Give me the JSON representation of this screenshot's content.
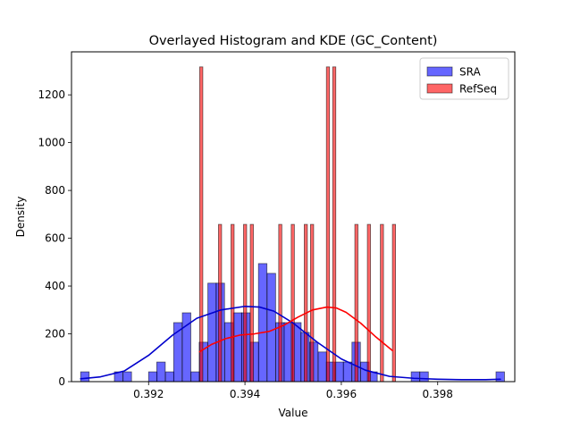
{
  "chart_data": {
    "type": "bar",
    "title": "Overlayed Histogram and KDE (GC_Content)",
    "xlabel": "Value",
    "ylabel": "Density",
    "xlim": [
      0.3904,
      0.3996
    ],
    "ylim": [
      0,
      1380
    ],
    "xticks": [
      0.392,
      0.394,
      0.396,
      0.398
    ],
    "xtick_labels": [
      "0.392",
      "0.394",
      "0.396",
      "0.398"
    ],
    "yticks": [
      0,
      200,
      400,
      600,
      800,
      1000,
      1200
    ],
    "ytick_labels": [
      "0",
      "200",
      "400",
      "600",
      "800",
      "1000",
      "1200"
    ],
    "grid": false,
    "legend_position": "top-right",
    "series": [
      {
        "name": "SRA",
        "kind": "histogram",
        "color": "#0000ff",
        "bin_width": 0.000176,
        "bins": [
          {
            "x": 0.39059,
            "y": 41
          },
          {
            "x": 0.39129,
            "y": 41
          },
          {
            "x": 0.39147,
            "y": 41
          },
          {
            "x": 0.392,
            "y": 41
          },
          {
            "x": 0.39217,
            "y": 82
          },
          {
            "x": 0.39235,
            "y": 41
          },
          {
            "x": 0.39252,
            "y": 247
          },
          {
            "x": 0.3927,
            "y": 288
          },
          {
            "x": 0.39288,
            "y": 41
          },
          {
            "x": 0.39305,
            "y": 165
          },
          {
            "x": 0.39323,
            "y": 412
          },
          {
            "x": 0.3934,
            "y": 412
          },
          {
            "x": 0.39358,
            "y": 247
          },
          {
            "x": 0.39376,
            "y": 288
          },
          {
            "x": 0.39393,
            "y": 288
          },
          {
            "x": 0.39411,
            "y": 165
          },
          {
            "x": 0.39428,
            "y": 494
          },
          {
            "x": 0.39446,
            "y": 453
          },
          {
            "x": 0.39464,
            "y": 247
          },
          {
            "x": 0.39481,
            "y": 247
          },
          {
            "x": 0.39499,
            "y": 247
          },
          {
            "x": 0.39516,
            "y": 206
          },
          {
            "x": 0.39534,
            "y": 165
          },
          {
            "x": 0.39552,
            "y": 124
          },
          {
            "x": 0.39569,
            "y": 82
          },
          {
            "x": 0.39587,
            "y": 82
          },
          {
            "x": 0.39604,
            "y": 82
          },
          {
            "x": 0.39622,
            "y": 165
          },
          {
            "x": 0.3964,
            "y": 82
          },
          {
            "x": 0.39657,
            "y": 41
          },
          {
            "x": 0.39745,
            "y": 41
          },
          {
            "x": 0.39763,
            "y": 41
          },
          {
            "x": 0.39921,
            "y": 41
          }
        ]
      },
      {
        "name": "RefSeq",
        "kind": "histogram",
        "color": "#ff0000",
        "bin_width": 6.53e-05,
        "bins": [
          {
            "x": 0.39306,
            "y": 1317
          },
          {
            "x": 0.39345,
            "y": 658
          },
          {
            "x": 0.39371,
            "y": 658
          },
          {
            "x": 0.39397,
            "y": 658
          },
          {
            "x": 0.39411,
            "y": 658
          },
          {
            "x": 0.3947,
            "y": 658
          },
          {
            "x": 0.39496,
            "y": 658
          },
          {
            "x": 0.39523,
            "y": 658
          },
          {
            "x": 0.39536,
            "y": 658
          },
          {
            "x": 0.39569,
            "y": 1317
          },
          {
            "x": 0.39582,
            "y": 1317
          },
          {
            "x": 0.39628,
            "y": 658
          },
          {
            "x": 0.39654,
            "y": 658
          },
          {
            "x": 0.39681,
            "y": 658
          },
          {
            "x": 0.39706,
            "y": 658
          }
        ]
      }
    ],
    "kde": [
      {
        "series": "SRA",
        "color": "#0000cc",
        "x": [
          0.39059,
          0.391,
          0.3915,
          0.392,
          0.3925,
          0.393,
          0.3935,
          0.394,
          0.3943,
          0.3946,
          0.395,
          0.3955,
          0.396,
          0.3965,
          0.397,
          0.3975,
          0.398,
          0.3985,
          0.399,
          0.3993
        ],
        "y": [
          12,
          20,
          45,
          110,
          195,
          265,
          300,
          315,
          312,
          295,
          245,
          165,
          95,
          48,
          22,
          14,
          10,
          8,
          8,
          10
        ]
      },
      {
        "series": "RefSeq",
        "color": "#ff0000",
        "x": [
          0.39306,
          0.3933,
          0.3936,
          0.3939,
          0.3942,
          0.3945,
          0.3948,
          0.3951,
          0.3954,
          0.3957,
          0.3959,
          0.3961,
          0.3964,
          0.3967,
          0.39706
        ],
        "y": [
          125,
          155,
          180,
          195,
          200,
          210,
          235,
          270,
          300,
          312,
          308,
          290,
          245,
          190,
          130
        ]
      }
    ]
  }
}
